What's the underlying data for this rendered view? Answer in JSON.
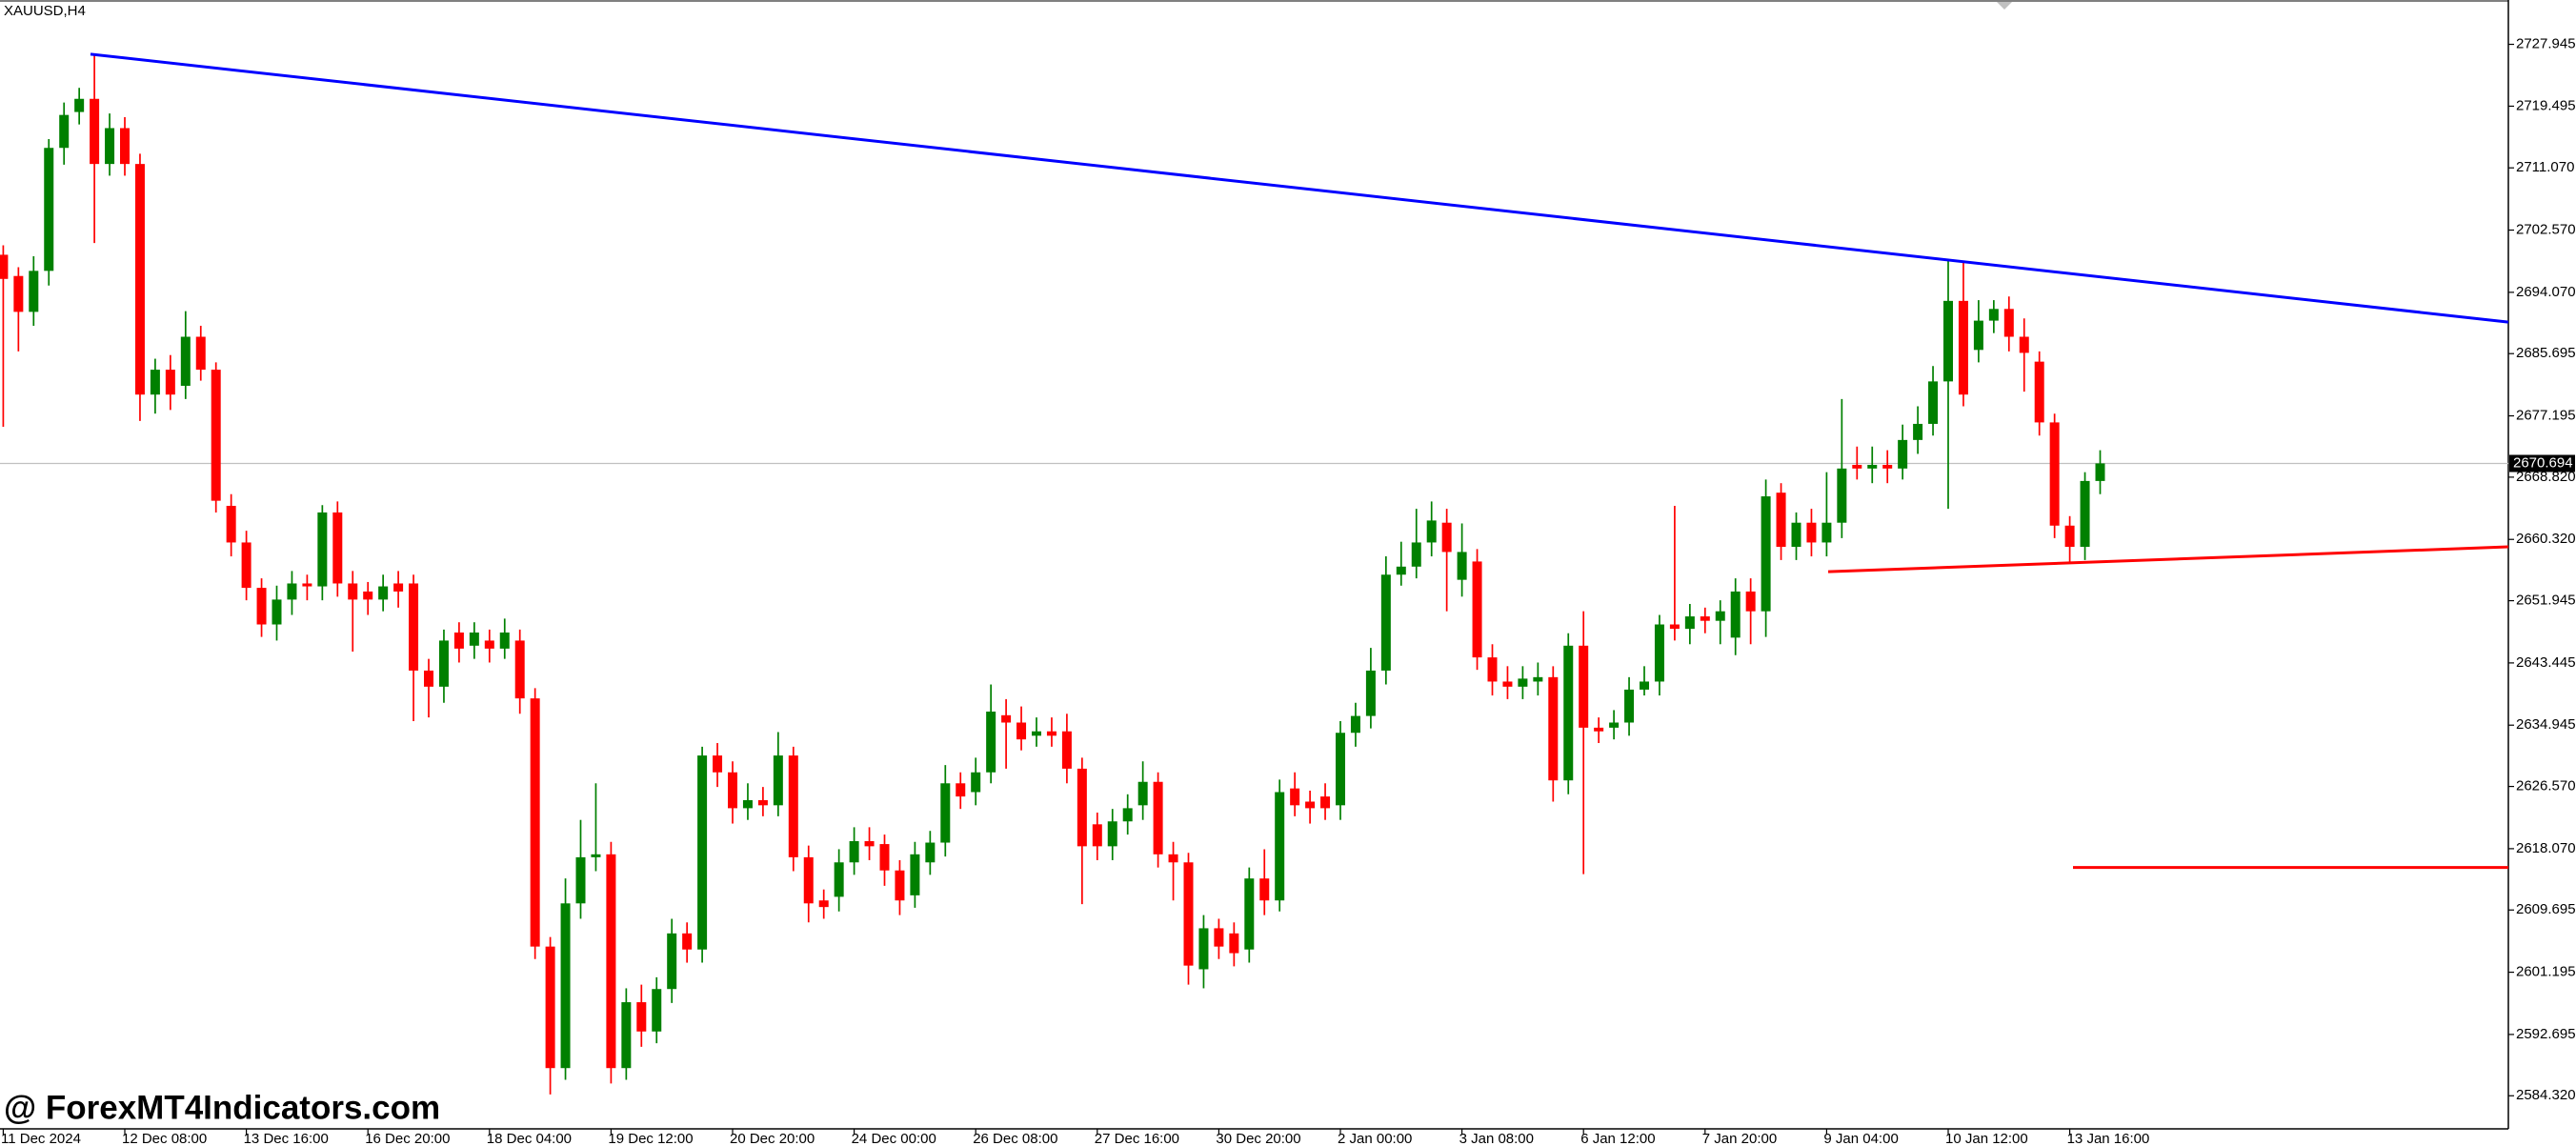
{
  "chart_data": {
    "type": "candlestick",
    "title": "XAUUSD,H4",
    "watermark": "@ ForexMT4Indicators.com",
    "up_color": "#008000",
    "down_color": "#ff0000",
    "last_price": 2670.694,
    "ylim": [
      2579.8,
      2734.0
    ],
    "yticks": [
      2727.945,
      2719.495,
      {
        "value": 2711.07,
        "label": "2711.070"
      },
      {
        "value": 2702.57,
        "label": "2702.570"
      },
      {
        "value": 2694.07,
        "label": "2694.070"
      },
      2685.695,
      2677.195,
      {
        "value": 2668.82,
        "label": "2668.820"
      },
      {
        "value": 2660.32,
        "label": "2660.320"
      },
      2651.945,
      2643.445,
      2634.945,
      {
        "value": 2626.57,
        "label": "2626.570"
      },
      {
        "value": 2618.07,
        "label": "2618.070"
      },
      2609.695,
      2601.195,
      2592.695,
      {
        "value": 2584.32,
        "label": "2584.320"
      }
    ],
    "categories": [
      "11 Dec 2024",
      null,
      null,
      null,
      null,
      null,
      null,
      null,
      "12 Dec 08:00",
      null,
      null,
      null,
      null,
      null,
      null,
      null,
      "13 Dec 16:00",
      null,
      null,
      null,
      null,
      null,
      null,
      null,
      "16 Dec 20:00",
      null,
      null,
      null,
      null,
      null,
      null,
      null,
      "18 Dec 04:00",
      null,
      null,
      null,
      null,
      null,
      null,
      null,
      "19 Dec 12:00",
      null,
      null,
      null,
      null,
      null,
      null,
      null,
      "20 Dec 20:00",
      null,
      null,
      null,
      null,
      null,
      null,
      null,
      "24 Dec 00:00",
      null,
      null,
      null,
      null,
      null,
      null,
      null,
      "26 Dec 08:00",
      null,
      null,
      null,
      null,
      null,
      null,
      null,
      "27 Dec 16:00",
      null,
      null,
      null,
      null,
      null,
      null,
      null,
      "30 Dec 20:00",
      null,
      null,
      null,
      null,
      null,
      null,
      null,
      "2 Jan 00:00",
      null,
      null,
      null,
      null,
      null,
      null,
      null,
      "3 Jan 08:00",
      null,
      null,
      null,
      null,
      null,
      null,
      null,
      "6 Jan 12:00",
      null,
      null,
      null,
      null,
      null,
      null,
      null,
      "7 Jan 20:00",
      null,
      null,
      null,
      null,
      null,
      null,
      null,
      "9 Jan 04:00",
      null,
      null,
      null,
      null,
      null,
      null,
      null,
      "10 Jan 12:00",
      null,
      null,
      null,
      null,
      null,
      null,
      null,
      "13 Jan 16:00",
      null,
      null
    ],
    "open": [
      2699.2,
      2696.3,
      2691.4,
      2697.0,
      2713.8,
      2718.7,
      2720.5,
      2711.6,
      2716.5,
      2711.6,
      2680.1,
      2683.5,
      2681.3,
      2688.0,
      2683.5,
      2664.9,
      2659.9,
      2653.7,
      2648.7,
      2652.1,
      2654.3,
      2653.9,
      2664.0,
      2654.3,
      2653.2,
      2652.1,
      2654.3,
      2654.3,
      2642.4,
      2640.2,
      2647.6,
      2645.8,
      2646.5,
      2645.4,
      2646.5,
      2638.6,
      2604.7,
      2588.1,
      2610.6,
      2616.9,
      2617.3,
      2588.1,
      2597.1,
      2593.1,
      2598.9,
      2606.5,
      2604.3,
      2630.8,
      2628.5,
      2623.6,
      2624.7,
      2624.0,
      2630.8,
      2616.9,
      2611.0,
      2611.5,
      2616.2,
      2619.1,
      2618.7,
      2615.1,
      2611.7,
      2616.2,
      2618.9,
      2627.0,
      2625.8,
      2628.5,
      2636.3,
      2635.3,
      2633.5,
      2634.1,
      2634.1,
      2629.0,
      2621.4,
      2618.4,
      2621.8,
      2624.0,
      2627.2,
      2617.3,
      2616.2,
      2601.6,
      2607.2,
      2606.5,
      2604.3,
      2614.0,
      2611.0,
      2626.3,
      2624.5,
      2625.2,
      2624.0,
      2633.9,
      2636.2,
      2642.4,
      2655.5,
      2656.6,
      2659.9,
      2662.6,
      2654.8,
      2657.3,
      2644.2,
      2640.9,
      2640.2,
      2640.9,
      2641.5,
      2627.4,
      2645.8,
      2634.6,
      2634.6,
      2635.3,
      2639.8,
      2640.9,
      2648.7,
      2648.1,
      2649.8,
      2649.2,
      2646.9,
      2653.2,
      2650.5,
      2666.7,
      2659.3,
      2662.6,
      2659.9,
      2662.6,
      2670.5,
      2670.0,
      2670.5,
      2670.0,
      2673.9,
      2676.1,
      2681.9,
      2692.9,
      2686.2,
      2690.2,
      2691.8,
      2688.0,
      2684.6,
      2676.3,
      2662.2,
      2659.3,
      2668.3
    ],
    "high": [
      2700.5,
      2697.5,
      2699.0,
      2715.0,
      2720.0,
      2722.0,
      2726.6,
      2718.5,
      2718.0,
      2713.0,
      2685.0,
      2685.5,
      2691.5,
      2689.5,
      2684.5,
      2666.5,
      2661.5,
      2655.0,
      2654.0,
      2656.0,
      2655.5,
      2665.0,
      2665.5,
      2656.0,
      2654.5,
      2655.5,
      2656.0,
      2655.5,
      2644.0,
      2648.0,
      2649.0,
      2649.0,
      2648.0,
      2649.5,
      2648.0,
      2640.0,
      2606.0,
      2614.0,
      2622.0,
      2627.0,
      2619.0,
      2599.0,
      2599.5,
      2600.5,
      2608.5,
      2608.0,
      2632.0,
      2632.5,
      2630.0,
      2627.0,
      2626.5,
      2634.0,
      2632.0,
      2618.5,
      2612.5,
      2618.0,
      2621.0,
      2621.0,
      2620.0,
      2616.5,
      2619.0,
      2620.5,
      2629.5,
      2628.5,
      2630.5,
      2640.5,
      2638.5,
      2637.5,
      2636.0,
      2636.0,
      2636.5,
      2630.5,
      2623.0,
      2623.5,
      2625.5,
      2630.0,
      2628.5,
      2619.0,
      2617.5,
      2609.0,
      2608.5,
      2608.0,
      2615.5,
      2618.0,
      2627.5,
      2628.5,
      2626.0,
      2627.0,
      2635.5,
      2638.0,
      2645.5,
      2658.0,
      2660.0,
      2664.5,
      2665.5,
      2664.5,
      2662.5,
      2659.0,
      2646.0,
      2643.0,
      2643.0,
      2643.5,
      2643.0,
      2647.5,
      2650.5,
      2636.0,
      2637.0,
      2641.5,
      2643.0,
      2650.0,
      2664.9,
      2651.5,
      2651.0,
      2652.0,
      2655.0,
      2655.0,
      2668.5,
      2668.0,
      2664.0,
      2664.5,
      2669.5,
      2679.5,
      2673.0,
      2673.0,
      2672.5,
      2676.0,
      2678.5,
      2684.0,
      2698.4,
      2698.4,
      2693.0,
      2693.0,
      2693.5,
      2690.5,
      2686.0,
      2677.5,
      2663.5,
      2669.5,
      2672.5
    ],
    "low": [
      2675.7,
      2686.0,
      2689.5,
      2695.0,
      2711.5,
      2717.0,
      2700.8,
      2710.0,
      2710.0,
      2676.5,
      2677.5,
      2678.0,
      2679.5,
      2682.0,
      2664.0,
      2658.0,
      2652.0,
      2647.0,
      2646.5,
      2650.0,
      2652.0,
      2652.0,
      2652.5,
      2645.0,
      2650.0,
      2650.5,
      2651.0,
      2635.5,
      2636.0,
      2638.0,
      2643.5,
      2644.0,
      2643.5,
      2644.0,
      2636.5,
      2603.0,
      2584.5,
      2586.5,
      2608.5,
      2615.0,
      2586.0,
      2586.5,
      2591.0,
      2591.5,
      2597.0,
      2602.5,
      2602.5,
      2626.5,
      2621.5,
      2622.0,
      2622.5,
      2622.5,
      2615.0,
      2608.0,
      2608.5,
      2609.5,
      2614.5,
      2616.5,
      2613.0,
      2609.0,
      2610.0,
      2614.5,
      2617.0,
      2623.5,
      2624.0,
      2627.0,
      2629.0,
      2631.5,
      2632.0,
      2632.0,
      2627.0,
      2610.5,
      2616.5,
      2616.5,
      2620.0,
      2622.0,
      2615.5,
      2611.0,
      2599.5,
      2599.0,
      2603.0,
      2602.0,
      2602.5,
      2609.0,
      2609.5,
      2622.5,
      2621.5,
      2622.0,
      2622.0,
      2632.0,
      2634.5,
      2640.5,
      2654.0,
      2655.0,
      2658.0,
      2650.5,
      2652.5,
      2642.5,
      2639.0,
      2638.5,
      2638.5,
      2639.0,
      2624.5,
      2625.5,
      2614.6,
      2632.5,
      2633.0,
      2633.5,
      2639.0,
      2639.0,
      2646.5,
      2646.0,
      2647.5,
      2646.0,
      2644.5,
      2646.0,
      2647.0,
      2657.5,
      2657.5,
      2658.0,
      2658.0,
      2660.5,
      2668.5,
      2668.0,
      2668.0,
      2668.5,
      2672.0,
      2674.5,
      2664.5,
      2678.5,
      2684.5,
      2688.5,
      2686.0,
      2680.5,
      2674.5,
      2660.5,
      2657.0,
      2657.5,
      2666.5
    ],
    "close": [
      2695.9,
      2691.4,
      2697.0,
      2713.8,
      2718.3,
      2720.5,
      2711.6,
      2716.5,
      2711.6,
      2680.1,
      2683.5,
      2680.1,
      2688.0,
      2683.5,
      2665.6,
      2659.9,
      2653.7,
      2648.7,
      2652.1,
      2654.3,
      2653.9,
      2664.0,
      2654.3,
      2652.1,
      2652.1,
      2653.9,
      2653.2,
      2642.4,
      2640.2,
      2646.5,
      2645.4,
      2647.6,
      2645.4,
      2647.6,
      2638.6,
      2604.7,
      2588.1,
      2610.6,
      2616.9,
      2617.3,
      2588.1,
      2597.1,
      2593.1,
      2598.9,
      2606.5,
      2604.3,
      2630.8,
      2628.5,
      2623.6,
      2624.7,
      2624.0,
      2630.8,
      2616.9,
      2610.6,
      2610.1,
      2616.2,
      2619.1,
      2618.4,
      2615.1,
      2611.0,
      2617.3,
      2618.9,
      2627.0,
      2625.2,
      2628.5,
      2636.8,
      2635.3,
      2633.0,
      2634.1,
      2633.5,
      2629.0,
      2618.4,
      2618.4,
      2621.8,
      2623.6,
      2627.2,
      2617.3,
      2616.2,
      2602.1,
      2607.2,
      2604.7,
      2603.8,
      2614.0,
      2611.0,
      2625.8,
      2624.0,
      2623.6,
      2623.6,
      2633.9,
      2636.2,
      2642.4,
      2655.5,
      2656.6,
      2659.9,
      2662.9,
      2658.6,
      2658.6,
      2644.2,
      2640.9,
      2640.2,
      2641.3,
      2641.5,
      2627.4,
      2645.8,
      2634.6,
      2634.1,
      2635.3,
      2639.8,
      2640.9,
      2648.7,
      2648.1,
      2649.8,
      2649.2,
      2650.5,
      2653.2,
      2650.5,
      2666.2,
      2659.3,
      2662.6,
      2659.9,
      2662.6,
      2670.0,
      2670.0,
      2670.5,
      2670.0,
      2673.9,
      2676.1,
      2681.9,
      2692.9,
      2680.1,
      2690.2,
      2691.8,
      2688.0,
      2685.8,
      2676.3,
      2662.2,
      2659.3,
      2668.3,
      2670.7
    ],
    "trendlines": [
      {
        "color": "#0000ff",
        "values": [
          2726.6,
          2690.0
        ]
      },
      {
        "color": "#ff0000",
        "values": [
          2655.9,
          2659.3
        ]
      },
      {
        "color": "#ff0000",
        "values": [
          2615.5,
          2615.5
        ]
      }
    ]
  }
}
